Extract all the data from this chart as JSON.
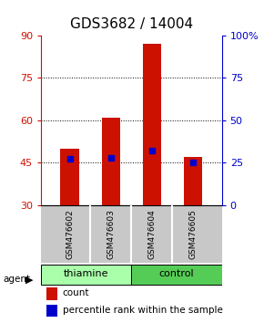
{
  "title": "GDS3682 / 14004",
  "samples": [
    "GSM476602",
    "GSM476603",
    "GSM476604",
    "GSM476605"
  ],
  "group_labels": [
    "thiamine",
    "control"
  ],
  "bar_bottom": 30,
  "bar_tops": [
    50,
    61,
    87,
    47
  ],
  "percentile_values": [
    27,
    28,
    32,
    25
  ],
  "left_ylim": [
    30,
    90
  ],
  "right_ylim": [
    0,
    100
  ],
  "left_yticks": [
    30,
    45,
    60,
    75,
    90
  ],
  "right_yticks": [
    0,
    25,
    50,
    75,
    100
  ],
  "right_yticklabels": [
    "0",
    "25",
    "50",
    "75",
    "100%"
  ],
  "hlines": [
    45,
    60,
    75
  ],
  "bar_color": "#CC1100",
  "marker_color": "#0000CC",
  "bar_width": 0.45,
  "background_color": "#ffffff",
  "label_area_color": "#C8C8C8",
  "thiamine_color": "#AAFFAA",
  "control_color": "#55CC55",
  "title_fontsize": 11,
  "tick_fontsize": 8,
  "sample_fontsize": 6.5,
  "group_fontsize": 8,
  "legend_fontsize": 7.5
}
